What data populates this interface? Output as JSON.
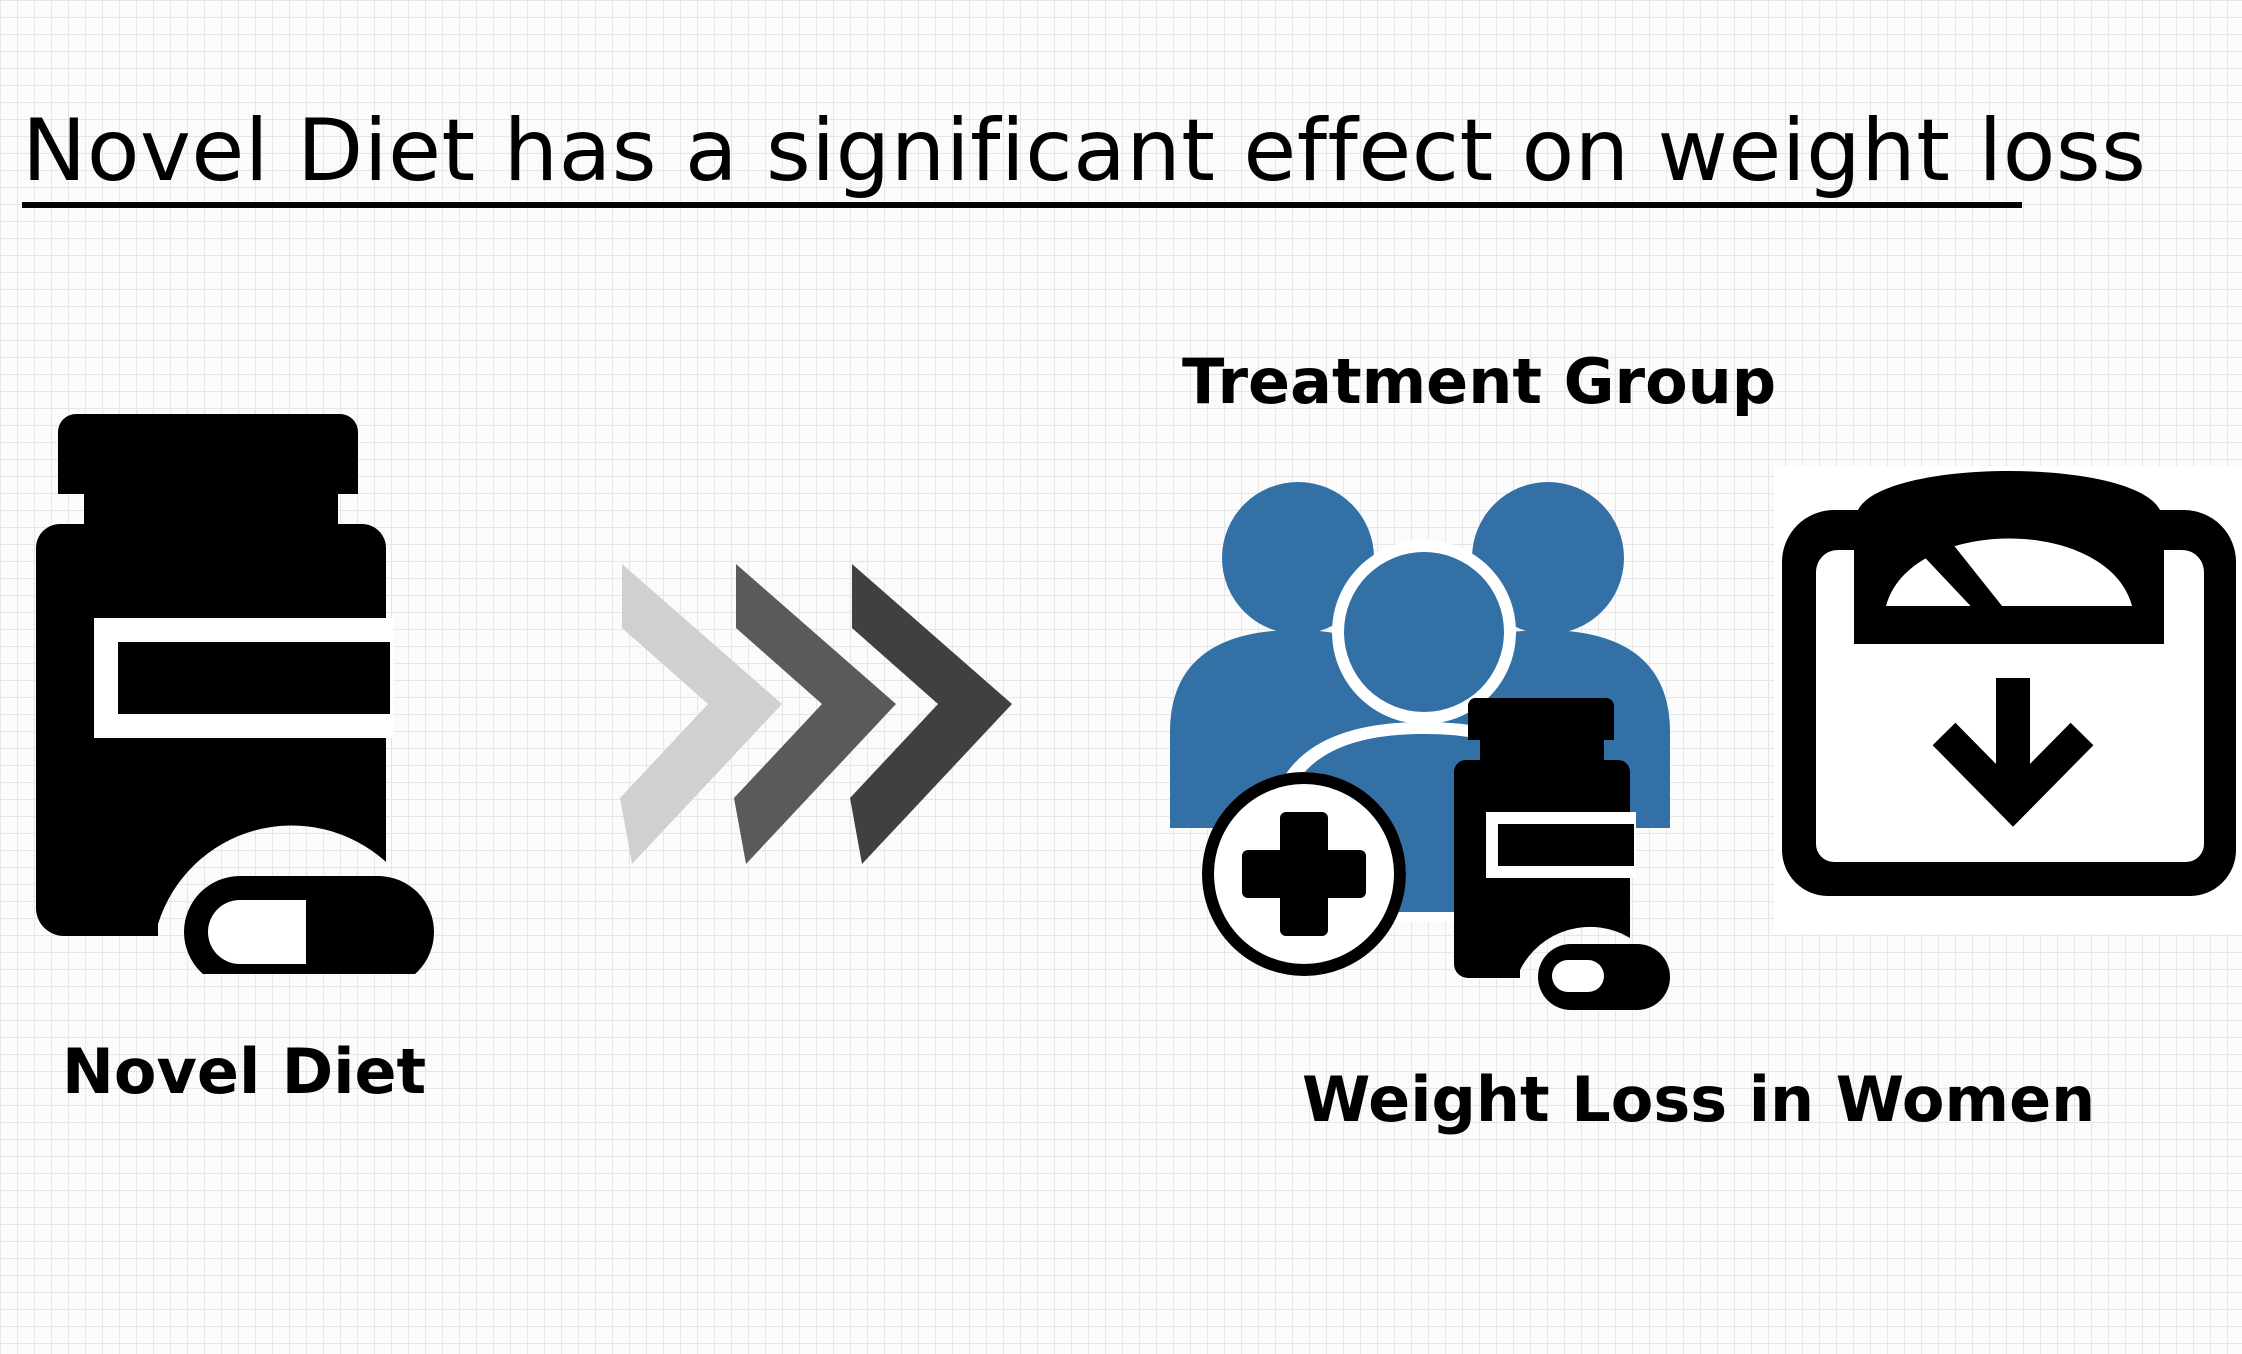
{
  "title": "Novel Diet has a significant effect on weight loss",
  "nodes": {
    "novel_diet": {
      "label": "Novel Diet",
      "icon": "pill-bottle-icon"
    },
    "treatment_group": {
      "label": "Treatment Group",
      "icon": "people-group-icon"
    },
    "weight_loss": {
      "label": "Weight Loss in Women",
      "icon": "weight-scale-down-icon"
    }
  },
  "connector": {
    "icon": "triple-chevron-arrow-icon"
  },
  "colors": {
    "ink": "#000000",
    "group_blue": "#3370a6",
    "chevron_light": "#d0d0d0",
    "chevron_mid": "#5a5a5a",
    "chevron_dark": "#404040"
  }
}
